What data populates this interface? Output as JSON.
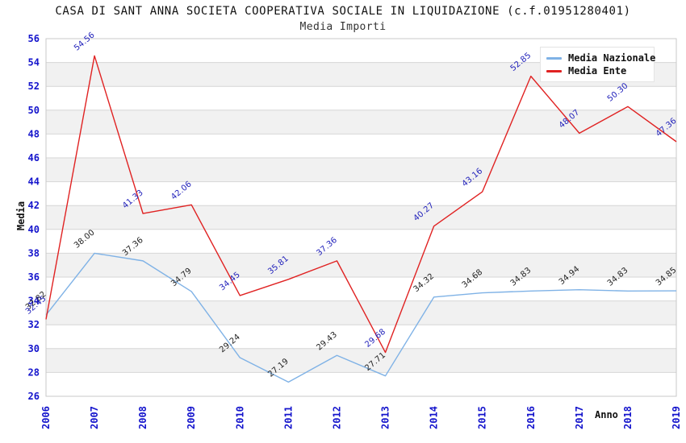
{
  "header": {
    "title": "CASA DI SANT ANNA SOCIETA COOPERATIVA SOCIALE IN LIQUIDAZIONE (c.f.01951280401)",
    "subtitle": "Media Importi"
  },
  "axes": {
    "y_label": "Media",
    "x_label": "Anno"
  },
  "chart_data": {
    "type": "line",
    "title": "CASA DI SANT ANNA SOCIETA COOPERATIVA SOCIALE IN LIQUIDAZIONE (c.f.01951280401)",
    "subtitle": "Media Importi",
    "xlabel": "Anno",
    "ylabel": "Media",
    "categories": [
      "2006",
      "2007",
      "2008",
      "2009",
      "2010",
      "2011",
      "2012",
      "2013",
      "2014",
      "2015",
      "2016",
      "2017",
      "2018",
      "2019"
    ],
    "series": [
      {
        "name": "Media Nazionale",
        "color": "#7fb2e6",
        "label_color": "#222222",
        "values": [
          32.82,
          38.0,
          37.36,
          34.79,
          29.24,
          27.19,
          29.43,
          27.71,
          34.32,
          34.68,
          34.83,
          34.94,
          34.83,
          34.85
        ]
      },
      {
        "name": "Media Ente",
        "color": "#e02222",
        "label_color": "#2222bb",
        "values": [
          32.45,
          54.56,
          41.33,
          42.06,
          34.45,
          35.81,
          37.36,
          29.68,
          40.27,
          43.16,
          52.85,
          48.07,
          50.3,
          47.36
        ]
      }
    ],
    "ylim": [
      26,
      56
    ],
    "y_tick_step": 2,
    "grid": true,
    "legend_position": "top-right",
    "colors": {
      "tick_label": "#1414cc",
      "grid_line": "#d6d6d6",
      "band_fill": "#f1f1f1",
      "plot_border": "#c9c9c9"
    }
  }
}
